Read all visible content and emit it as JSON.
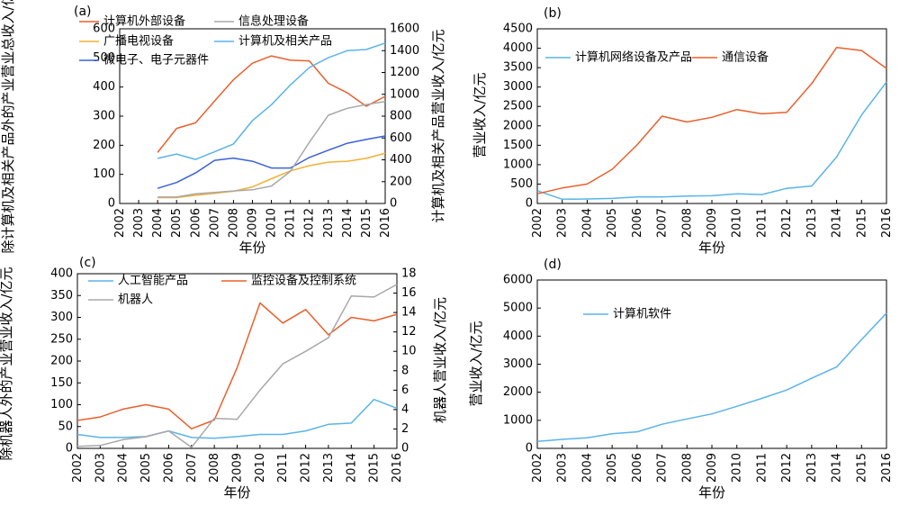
{
  "chart_data": [
    {
      "panel_label": "(a)",
      "type": "line",
      "x": [
        "2002",
        "2003",
        "2004",
        "2005",
        "2006",
        "2007",
        "2008",
        "2009",
        "2010",
        "2011",
        "2012",
        "2013",
        "2014",
        "2015",
        "2016"
      ],
      "xlabel": "年份",
      "ylabel_left": "除计算机及相关产品外的产业营业总收入/亿元",
      "ylabel_right": "计算机及相关产品营业收入/亿元",
      "ylim_left": [
        0,
        600
      ],
      "ylim_right": [
        0,
        1600
      ],
      "yticks_left": [
        "0",
        "100",
        "200",
        "300",
        "400",
        "500",
        "600"
      ],
      "yticks_right": [
        "0",
        "200",
        "400",
        "600",
        "800",
        "1000",
        "1200",
        "1400",
        "1600"
      ],
      "grid": false,
      "legend_position": "top",
      "series": [
        {
          "name": "计算机外部设备",
          "axis": "left",
          "color": "#e8602c",
          "values": [
            null,
            null,
            175,
            258,
            277,
            352,
            425,
            482,
            507,
            492,
            490,
            413,
            380,
            334,
            368
          ]
        },
        {
          "name": "广播电视设备",
          "axis": "left",
          "color": "#f2b134",
          "values": [
            null,
            null,
            20,
            20,
            28,
            35,
            42,
            57,
            85,
            112,
            130,
            142,
            145,
            155,
            173
          ]
        },
        {
          "name": "微电子、电子元器件",
          "axis": "left",
          "color": "#3a60d8",
          "values": [
            null,
            null,
            52,
            72,
            105,
            148,
            156,
            145,
            122,
            122,
            158,
            183,
            207,
            220,
            232
          ]
        },
        {
          "name": "信息处理设备",
          "axis": "left",
          "color": "#a8a8a8",
          "values": [
            null,
            null,
            22,
            22,
            33,
            38,
            43,
            47,
            60,
            110,
            210,
            303,
            327,
            340,
            350
          ]
        },
        {
          "name": "计算机及相关产品",
          "axis": "right",
          "color": "#5ab4e8",
          "values": [
            null,
            null,
            413,
            453,
            403,
            473,
            545,
            760,
            905,
            1085,
            1245,
            1335,
            1400,
            1410,
            1470
          ]
        }
      ]
    },
    {
      "panel_label": "(b)",
      "type": "line",
      "x": [
        "2002",
        "2003",
        "2004",
        "2005",
        "2006",
        "2007",
        "2008",
        "2009",
        "2010",
        "2011",
        "2012",
        "2013",
        "2014",
        "2015",
        "2016"
      ],
      "xlabel": "年份",
      "ylabel": "营业收入/亿元",
      "ylim": [
        0,
        4500
      ],
      "yticks": [
        "0",
        "500",
        "1000",
        "1500",
        "2000",
        "2500",
        "3000",
        "3500",
        "4000",
        "4500"
      ],
      "grid": false,
      "legend_position": "top",
      "series": [
        {
          "name": "计算机网络设备及产品",
          "color": "#5ab4e8",
          "values": [
            330,
            110,
            115,
            130,
            170,
            170,
            190,
            200,
            250,
            230,
            390,
            450,
            1200,
            2280,
            3130
          ]
        },
        {
          "name": "通信设备",
          "color": "#e8602c",
          "values": [
            250,
            400,
            500,
            880,
            1510,
            2250,
            2100,
            2220,
            2420,
            2310,
            2350,
            3090,
            4020,
            3940,
            3480
          ]
        }
      ]
    },
    {
      "panel_label": "(c)",
      "type": "line",
      "x": [
        "2002",
        "2003",
        "2004",
        "2005",
        "2006",
        "2007",
        "2008",
        "2009",
        "2010",
        "2011",
        "2012",
        "2013",
        "2014",
        "2015",
        "2016"
      ],
      "xlabel": "年份",
      "ylabel_left": "除机器人外的产业营业收入/亿元",
      "ylabel_right": "机器人营业收入/亿元",
      "ylim_left": [
        0,
        400
      ],
      "ylim_right": [
        0,
        18
      ],
      "yticks_left": [
        "0",
        "50",
        "100",
        "150",
        "200",
        "250",
        "300",
        "350",
        "400"
      ],
      "yticks_right": [
        "0",
        "2",
        "4",
        "6",
        "8",
        "10",
        "12",
        "14",
        "16",
        "18"
      ],
      "grid": false,
      "legend_position": "top",
      "series": [
        {
          "name": "人工智能产品",
          "axis": "left",
          "color": "#5ab4e8",
          "values": [
            32,
            25,
            25,
            27,
            40,
            25,
            23,
            27,
            32,
            32,
            40,
            55,
            58,
            112,
            92
          ]
        },
        {
          "name": "监控设备及控制系统",
          "axis": "left",
          "color": "#e8602c",
          "values": [
            64,
            72,
            90,
            100,
            90,
            45,
            65,
            185,
            333,
            287,
            318,
            260,
            300,
            292,
            307
          ]
        },
        {
          "name": "机器人",
          "axis": "right",
          "color": "#a8a8a8",
          "values": [
            0.2,
            0.3,
            0.9,
            1.2,
            1.8,
            0.1,
            3.1,
            3.0,
            6.0,
            8.7,
            10.0,
            11.4,
            15.7,
            15.6,
            16.9
          ]
        }
      ]
    },
    {
      "panel_label": "(d)",
      "type": "line",
      "x": [
        "2002",
        "2003",
        "2004",
        "2005",
        "2006",
        "2007",
        "2008",
        "2009",
        "2010",
        "2011",
        "2012",
        "2013",
        "2014",
        "2015",
        "2016"
      ],
      "xlabel": "年份",
      "ylabel": "营业收入/亿元",
      "ylim": [
        0,
        6000
      ],
      "yticks": [
        "0",
        "1000",
        "2000",
        "3000",
        "4000",
        "5000",
        "6000"
      ],
      "grid": false,
      "legend_position": "upper-left",
      "series": [
        {
          "name": "计算机软件",
          "color": "#5ab4e8",
          "values": [
            250,
            320,
            380,
            520,
            590,
            860,
            1050,
            1230,
            1500,
            1780,
            2080,
            2500,
            2900,
            3880,
            4820
          ]
        }
      ]
    }
  ]
}
